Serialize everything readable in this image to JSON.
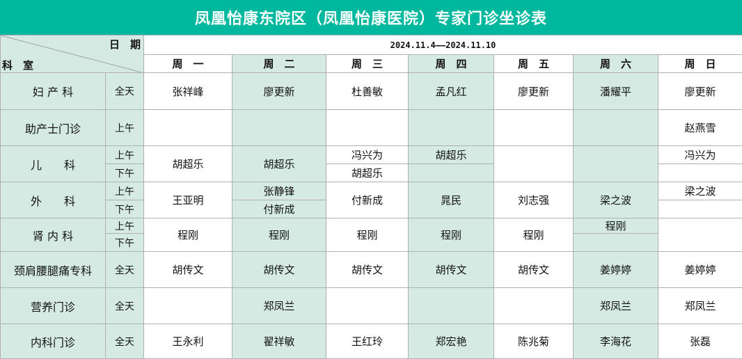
{
  "title": "凤凰怡康东院区（凤凰怡康医院）专家门诊坐诊表",
  "header": {
    "date_label": "日　期",
    "dept_label": "科　室",
    "date_range": "2024.11.4——2024.11.10",
    "weekdays": [
      "周　一",
      "周　二",
      "周　三",
      "周　四",
      "周　五",
      "周　六",
      "周　日"
    ]
  },
  "colors": {
    "title_bg": "#00B89E",
    "shade": "#D6EAE4"
  },
  "rows": [
    {
      "dept": "妇 产 科",
      "slots": [
        "全天"
      ],
      "days": [
        "张祥峰",
        "廖更新",
        "杜善敏",
        "孟凡红",
        "廖更新",
        "潘耀平",
        "廖更新"
      ]
    },
    {
      "dept": "助产士门诊",
      "slots": [
        "上午"
      ],
      "days": [
        "",
        "",
        "",
        "",
        "",
        "",
        "赵燕雪"
      ]
    },
    {
      "dept": "儿　　科",
      "slots": [
        "上午",
        "下午"
      ],
      "days": [
        "胡超乐",
        "胡超乐",
        [
          "冯兴为",
          "胡超乐"
        ],
        [
          "胡超乐",
          ""
        ],
        "",
        "",
        [
          "冯兴为",
          ""
        ]
      ]
    },
    {
      "dept": "外　　科",
      "slots": [
        "上午",
        "下午"
      ],
      "days": [
        "王亚明",
        [
          "张静锋",
          "付新成"
        ],
        "付新成",
        "晁民",
        "刘志强",
        "梁之波",
        [
          "梁之波",
          ""
        ]
      ]
    },
    {
      "dept": "肾 内 科",
      "slots": [
        "上午",
        "下午"
      ],
      "days": [
        "程刚",
        "程刚",
        "程刚",
        "程刚",
        "程刚",
        [
          "程刚",
          ""
        ],
        ""
      ]
    },
    {
      "dept": "颈肩腰腿痛专科",
      "slots": [
        "全天"
      ],
      "days": [
        "胡传文",
        "胡传文",
        "胡传文",
        "胡传文",
        "胡传文",
        "姜婷婷",
        "姜婷婷"
      ]
    },
    {
      "dept": "营养门诊",
      "slots": [
        "全天"
      ],
      "days": [
        "",
        "郑凤兰",
        "",
        "",
        "",
        "郑凤兰",
        "郑凤兰"
      ]
    },
    {
      "dept": "内科门诊",
      "slots": [
        "全天"
      ],
      "days": [
        "王永利",
        "翟祥敏",
        "王红玲",
        "郑宏艳",
        "陈兆菊",
        "李海花",
        "张磊"
      ]
    }
  ]
}
